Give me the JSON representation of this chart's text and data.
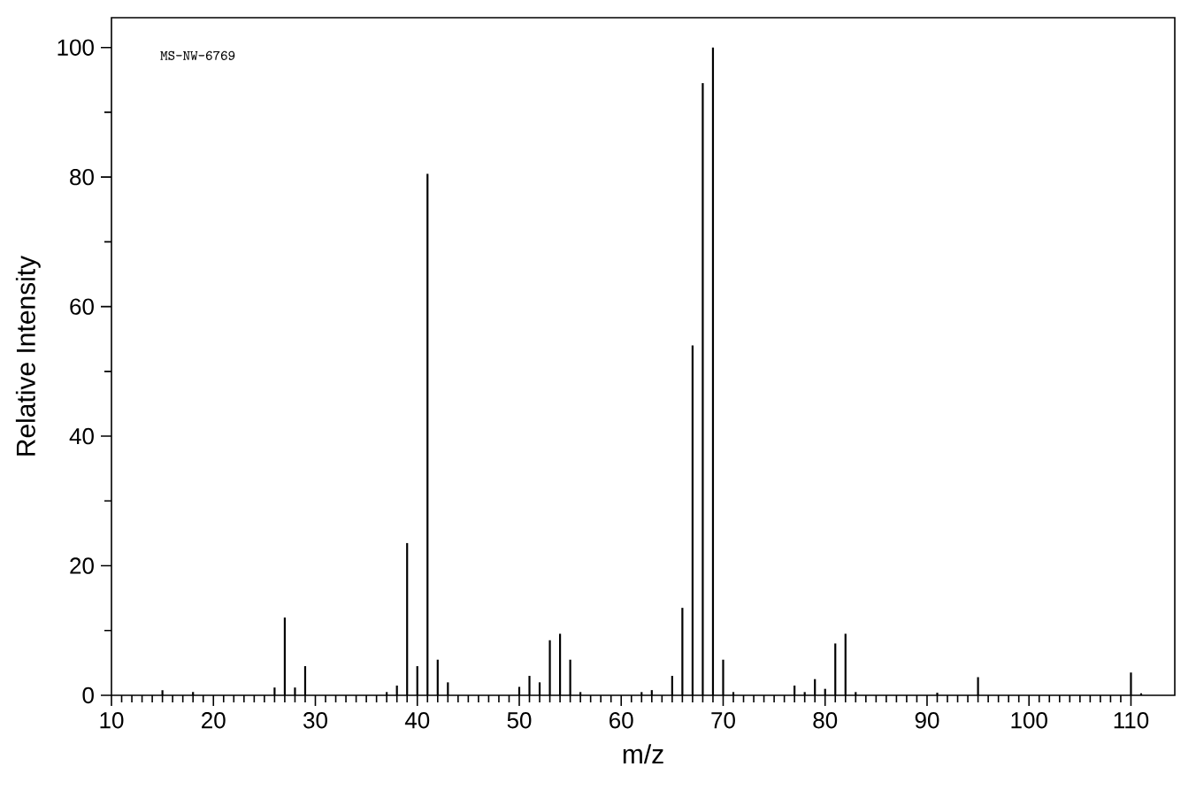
{
  "chart_data": {
    "type": "bar",
    "xlabel": "m/z",
    "ylabel": "Relative Intensity",
    "annotations": [
      "MS-NW-6769"
    ],
    "x": [
      15,
      18,
      26,
      27,
      28,
      29,
      37,
      38,
      39,
      40,
      41,
      42,
      43,
      50,
      51,
      52,
      53,
      54,
      55,
      56,
      62,
      63,
      65,
      66,
      67,
      68,
      69,
      70,
      71,
      77,
      78,
      79,
      80,
      81,
      82,
      83,
      91,
      95,
      110,
      111
    ],
    "values": [
      0.8,
      0.5,
      1.2,
      12,
      1.2,
      4.5,
      0.5,
      1.5,
      23.5,
      4.5,
      80.5,
      5.5,
      2,
      1.3,
      3,
      2,
      8.5,
      9.5,
      5.5,
      0.5,
      0.5,
      0.8,
      3,
      13.5,
      54,
      94.5,
      100,
      5.5,
      0.5,
      1.5,
      0.5,
      2.5,
      1,
      8,
      9.5,
      0.5,
      0.4,
      2.8,
      3.5,
      0.3
    ],
    "color": "#000000",
    "xlim": [
      10,
      114.3
    ],
    "ylim": [
      0,
      104.6
    ],
    "xticks": [
      10,
      20,
      30,
      40,
      50,
      60,
      70,
      80,
      90,
      100,
      110
    ],
    "yticks": [
      0,
      20,
      40,
      60,
      80,
      100
    ]
  }
}
